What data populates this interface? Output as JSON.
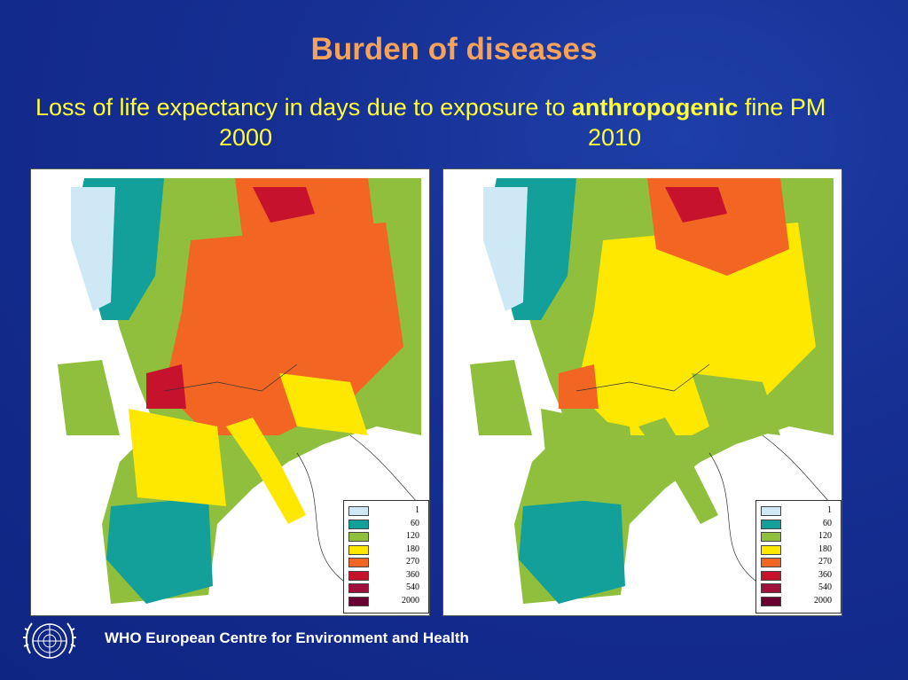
{
  "title": "Burden of diseases",
  "subtitle_prefix": "Loss of life expectancy in days due to exposure to ",
  "subtitle_bold": "anthropogenic",
  "subtitle_suffix": " fine PM",
  "maps": [
    {
      "year": "2000"
    },
    {
      "year": "2010"
    }
  ],
  "legend": [
    {
      "label": "1",
      "color": "#cfe8f5"
    },
    {
      "label": "60",
      "color": "#13a09a"
    },
    {
      "label": "120",
      "color": "#8fbf3c"
    },
    {
      "label": "180",
      "color": "#ffe800"
    },
    {
      "label": "270",
      "color": "#f26522"
    },
    {
      "label": "360",
      "color": "#c7122e"
    },
    {
      "label": "540",
      "color": "#a0103a"
    },
    {
      "label": "2000",
      "color": "#6a0030"
    }
  ],
  "footer": "WHO European Centre for Environment and Health",
  "icons": {
    "logo": "un-emblem-icon"
  }
}
